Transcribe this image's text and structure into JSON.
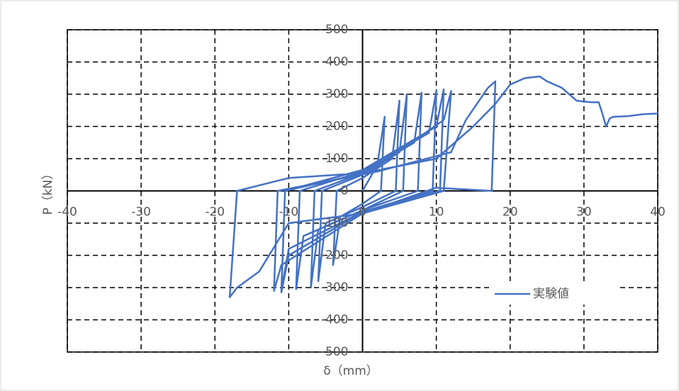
{
  "chart_data": {
    "type": "line",
    "x_label": "δ（mm）",
    "y_label": "P（kN）",
    "xlim": [
      -40,
      40
    ],
    "xticks": [
      -40,
      -30,
      -20,
      -10,
      0,
      10,
      20,
      30,
      40
    ],
    "ylim": [
      -500,
      500
    ],
    "yticks": [
      -500,
      -400,
      -300,
      -200,
      -100,
      0,
      100,
      200,
      300,
      400,
      500
    ],
    "grid": true,
    "legend": "bottom-right",
    "x": [
      0,
      2,
      3,
      2.5,
      0,
      -3,
      -4,
      -3.5,
      0,
      4,
      5,
      4.5,
      0,
      -5,
      -6,
      -5.5,
      0,
      5,
      6,
      5.5,
      0,
      -6,
      -7,
      -6.5,
      0,
      7,
      8,
      7.5,
      0,
      -8,
      -9,
      -8.5,
      0,
      9,
      10,
      9.5,
      0,
      -10,
      -11,
      -10.5,
      0,
      10,
      11,
      10.5,
      0,
      -10,
      -11,
      -10.5,
      1,
      11,
      12,
      11,
      0,
      -11,
      -12,
      -11.5,
      2,
      12,
      14,
      17,
      18,
      17.5,
      10,
      0,
      -10,
      -14,
      -17,
      -18,
      -17,
      -10,
      0,
      10,
      15,
      18,
      20,
      22,
      24,
      25,
      27,
      29,
      31,
      32,
      32.5,
      33,
      33.5,
      34,
      36,
      38,
      40
    ],
    "series": [
      {
        "name": "実験値",
        "color": "#4472c4",
        "values": [
          0,
          80,
          230,
          0,
          -40,
          -80,
          -230,
          0,
          40,
          100,
          280,
          0,
          -50,
          -100,
          -280,
          0,
          50,
          120,
          300,
          0,
          -60,
          -120,
          -300,
          0,
          55,
          150,
          305,
          0,
          -60,
          -140,
          -305,
          0,
          60,
          180,
          310,
          0,
          -65,
          -180,
          -310,
          0,
          65,
          200,
          315,
          0,
          -65,
          -200,
          -315,
          0,
          60,
          220,
          310,
          0,
          -70,
          -230,
          -310,
          0,
          60,
          120,
          220,
          320,
          340,
          0,
          10,
          -70,
          -100,
          -250,
          -300,
          -330,
          0,
          40,
          55,
          100,
          200,
          270,
          330,
          350,
          355,
          340,
          320,
          280,
          275,
          275,
          240,
          200,
          225,
          230,
          232,
          238,
          240
        ]
      }
    ]
  }
}
